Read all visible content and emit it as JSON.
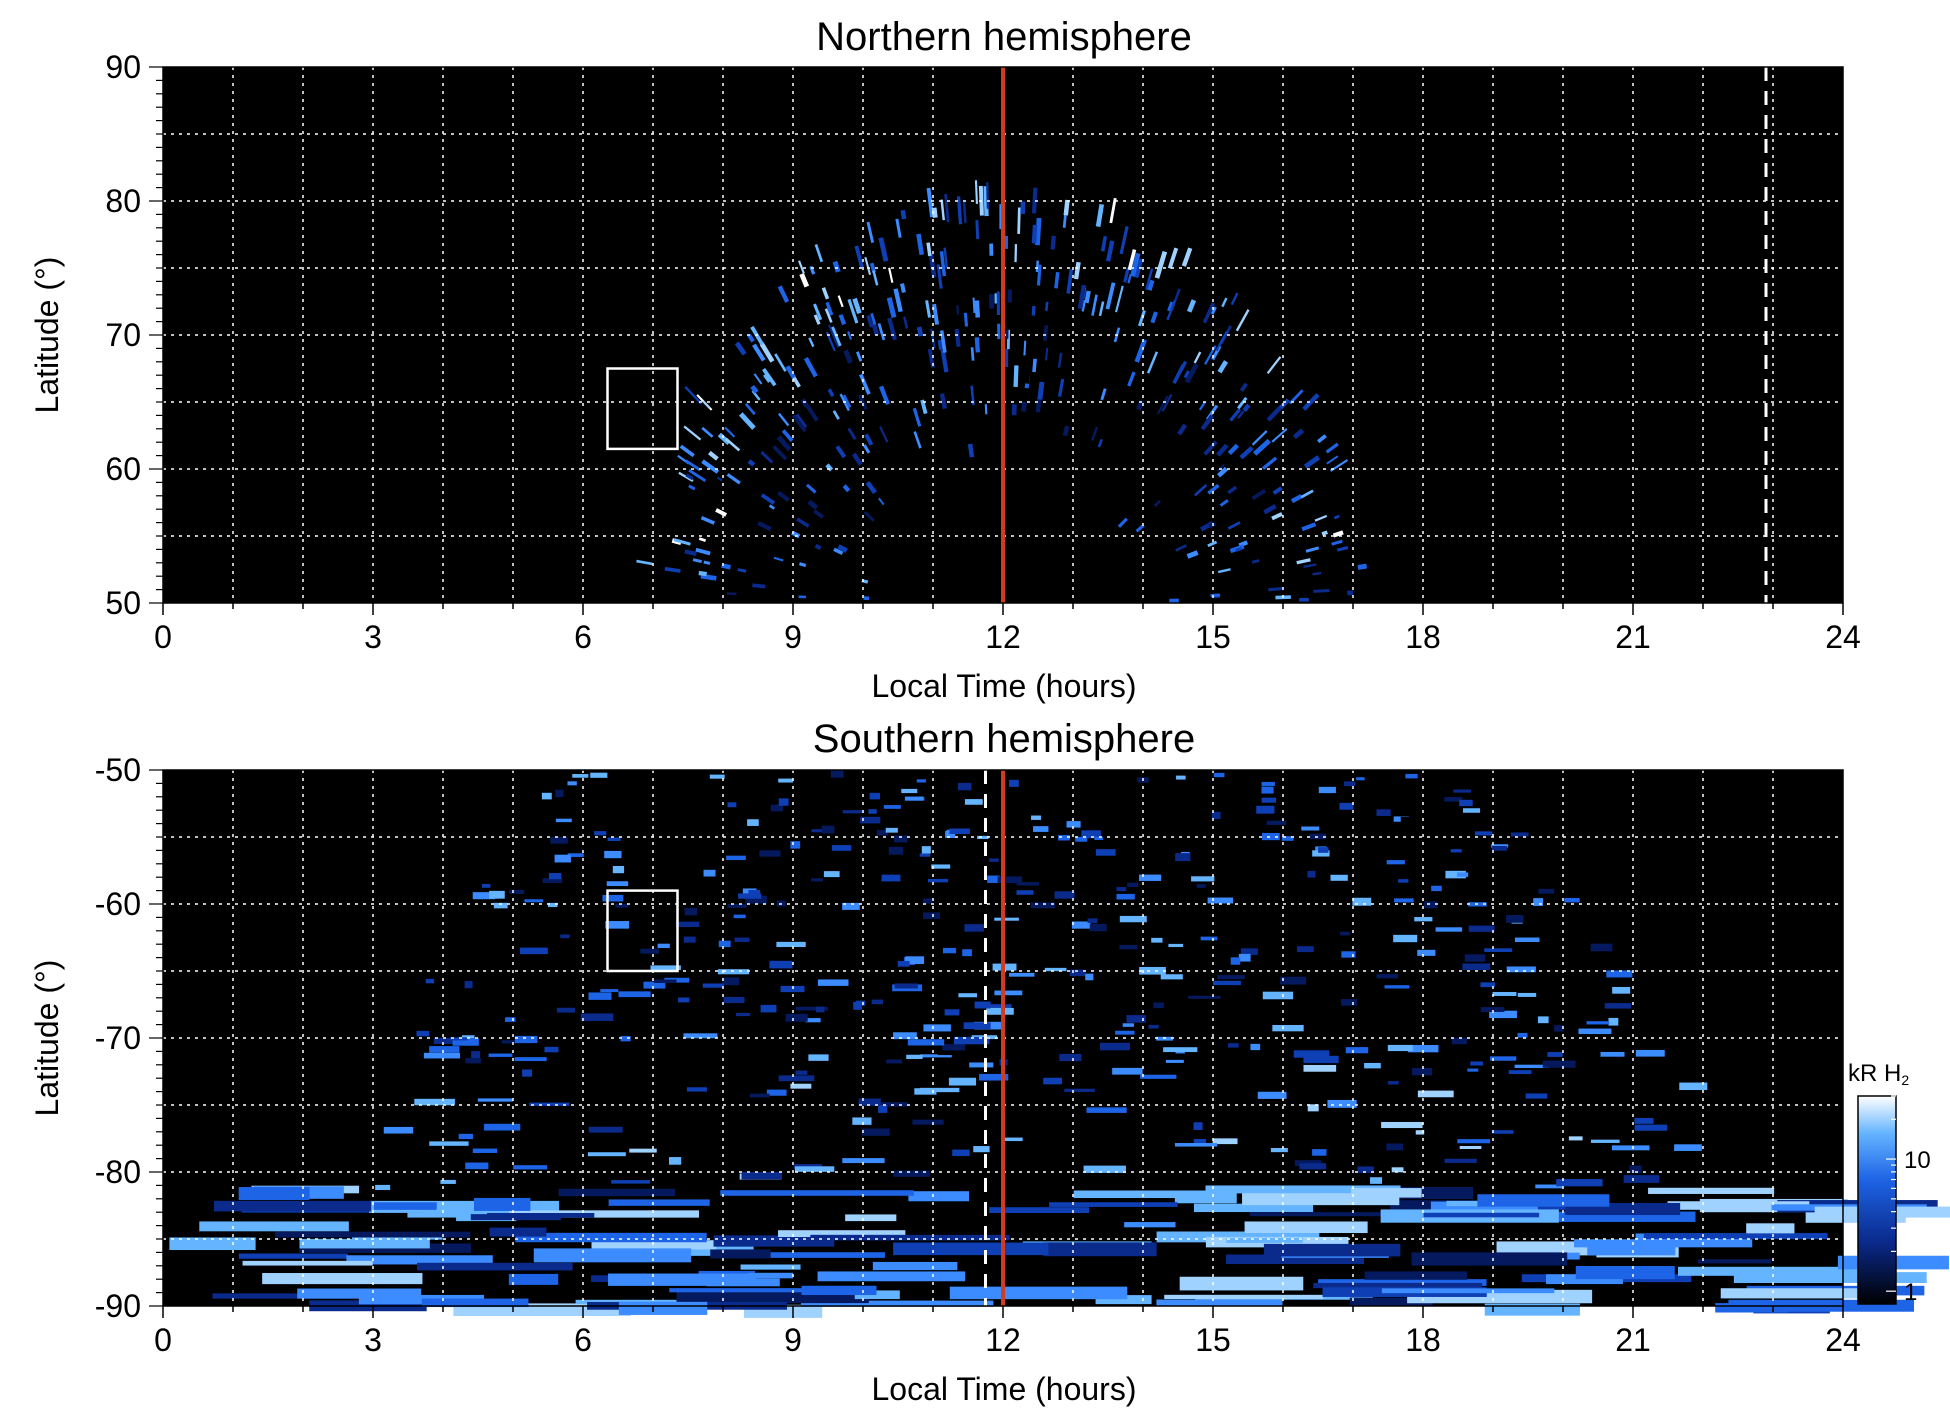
{
  "chart_data": [
    {
      "type": "heatmap",
      "title": "Northern hemisphere",
      "xlabel": "Local Time (hours)",
      "ylabel": "Latitude (°)",
      "xlim": [
        0,
        24
      ],
      "ylim": [
        50,
        90
      ],
      "x_ticks": [
        0,
        3,
        6,
        9,
        12,
        15,
        18,
        21,
        24
      ],
      "y_ticks": [
        50,
        60,
        70,
        80,
        90
      ],
      "x_tick_labels": [
        "0",
        "3",
        "6",
        "9",
        "12",
        "15",
        "18",
        "21",
        "24"
      ],
      "y_tick_labels": [
        "50",
        "60",
        "70",
        "80",
        "90"
      ],
      "grid": true,
      "background": "#000000",
      "emission_region": {
        "local_time_start": 7.0,
        "local_time_end": 17.2,
        "max_latitude": 80,
        "peak_local_time": 12
      },
      "marker_line": {
        "x": 12,
        "color": "#d23c1e"
      },
      "dashed_line": {
        "x": 22.9,
        "color": "#ffffff"
      },
      "box": {
        "x": [
          6.35,
          7.35
        ],
        "y": [
          61.5,
          67.5
        ],
        "color": "#ffffff"
      }
    },
    {
      "type": "heatmap",
      "title": "Southern hemisphere",
      "xlabel": "Local Time (hours)",
      "ylabel": "Latitude (°)",
      "xlim": [
        0,
        24
      ],
      "ylim": [
        -90,
        -50
      ],
      "x_ticks": [
        0,
        3,
        6,
        9,
        12,
        15,
        18,
        21,
        24
      ],
      "y_ticks": [
        -90,
        -80,
        -70,
        -60,
        -50
      ],
      "x_tick_labels": [
        "0",
        "3",
        "6",
        "9",
        "12",
        "15",
        "18",
        "21",
        "24"
      ],
      "y_tick_labels": [
        "-90",
        "-80",
        "-70",
        "-60",
        "-50"
      ],
      "grid": true,
      "background": "#000000",
      "emission_region": {
        "local_time_start": 5.5,
        "local_time_end": 19.0,
        "polar_cap_latitude": -81,
        "peak_local_time": 12
      },
      "marker_line": {
        "x": 12,
        "color": "#d23c1e"
      },
      "dashed_line": {
        "x": 11.75,
        "color": "#ffffff"
      },
      "box": {
        "x": [
          6.35,
          7.35
        ],
        "y": [
          -65,
          -59
        ],
        "color": "#ffffff"
      }
    }
  ],
  "colorbar": {
    "label_main": "kR H",
    "label_sub": "2",
    "tick_labels": [
      "1",
      "10"
    ],
    "tick_values": [
      1,
      10
    ],
    "range": [
      0.8,
      30
    ],
    "scale": "log",
    "colors": [
      "#000000",
      "#0a2a8c",
      "#1e64e6",
      "#64b4ff",
      "#ffffff"
    ]
  }
}
